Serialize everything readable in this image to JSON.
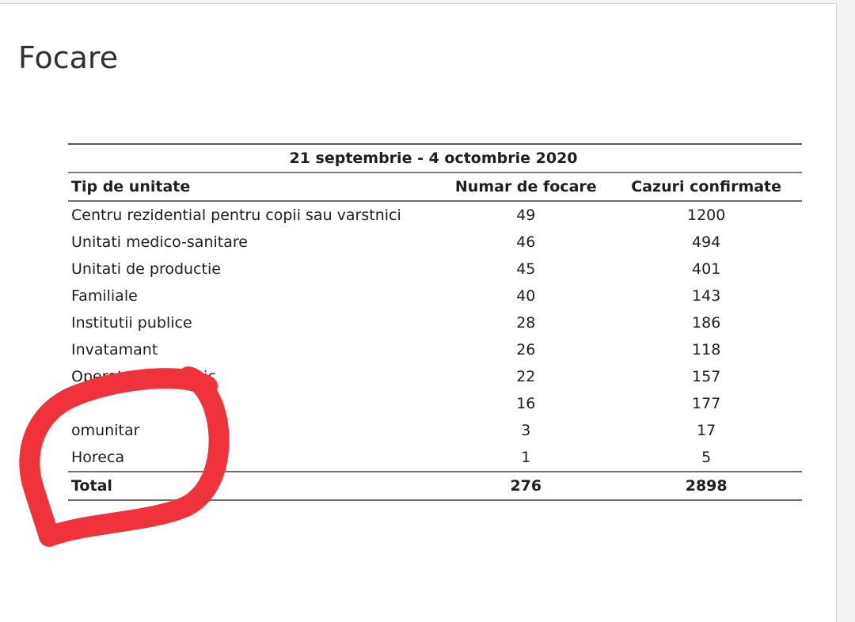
{
  "page": {
    "title": "Focare"
  },
  "table": {
    "period": "21 septembrie - 4 octombrie 2020",
    "headers": {
      "type": "Tip de unitate",
      "outbreaks": "Numar de focare",
      "cases": "Cazuri confirmate"
    },
    "rows": [
      {
        "type": "Centru rezidential pentru copii sau varstnici",
        "outbreaks": "49",
        "cases": "1200"
      },
      {
        "type": "Unitati medico-sanitare",
        "outbreaks": "46",
        "cases": "494"
      },
      {
        "type": "Unitati de productie",
        "outbreaks": "45",
        "cases": "401"
      },
      {
        "type": "Familiale",
        "outbreaks": "40",
        "cases": "143"
      },
      {
        "type": "Institutii publice",
        "outbreaks": "28",
        "cases": "186"
      },
      {
        "type": "Invatamant",
        "outbreaks": "26",
        "cases": "118"
      },
      {
        "type": "Operator economic",
        "outbreaks": "22",
        "cases": "157"
      },
      {
        "type": "",
        "outbreaks": "16",
        "cases": "177"
      },
      {
        "type": "omunitar",
        "outbreaks": "3",
        "cases": "17"
      },
      {
        "type": "Horeca",
        "outbreaks": "1",
        "cases": "5"
      }
    ],
    "total": {
      "type": "Total",
      "outbreaks": "276",
      "cases": "2898"
    }
  },
  "annotation": {
    "color": "#f0333a"
  }
}
